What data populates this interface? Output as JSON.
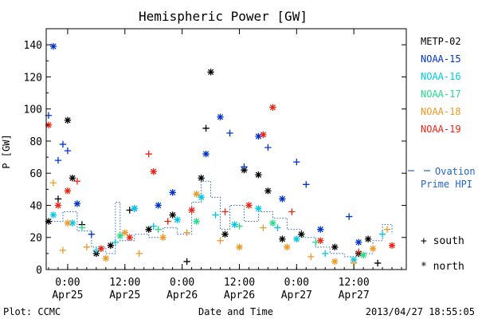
{
  "chart_data": {
    "type": "scatter",
    "title": "Hemispheric Power [GW]",
    "xlabel": "Date and Time",
    "ylabel": "P [GW]",
    "ylim": [
      0,
      150
    ],
    "xlim": [
      "2013-04-24T19:30",
      "2013-04-27T23:00"
    ],
    "yticks": [
      0,
      20,
      40,
      60,
      80,
      100,
      120,
      140
    ],
    "xticks": [
      {
        "x": "2013-04-25T00:00",
        "time": "0:00",
        "date": "Apr25"
      },
      {
        "x": "2013-04-25T12:00",
        "time": "12:00",
        "date": "Apr25"
      },
      {
        "x": "2013-04-26T00:00",
        "time": "0:00",
        "date": "Apr26"
      },
      {
        "x": "2013-04-26T12:00",
        "time": "12:00",
        "date": "Apr26"
      },
      {
        "x": "2013-04-27T00:00",
        "time": "0:00",
        "date": "Apr27"
      },
      {
        "x": "2013-04-27T12:00",
        "time": "12:00",
        "date": "Apr27"
      }
    ],
    "legend_placement": "right",
    "series": [
      {
        "name": "METP-02",
        "color": "#000000",
        "points": [
          {
            "x": "2013-04-24T20:00",
            "y": 30,
            "m": "north"
          },
          {
            "x": "2013-04-24T22:00",
            "y": 44,
            "m": "south"
          },
          {
            "x": "2013-04-25T00:00",
            "y": 93,
            "m": "north"
          },
          {
            "x": "2013-04-25T01:00",
            "y": 57,
            "m": "north"
          },
          {
            "x": "2013-04-25T03:00",
            "y": 28,
            "m": "south"
          },
          {
            "x": "2013-04-25T06:00",
            "y": 10,
            "m": "north"
          },
          {
            "x": "2013-04-25T09:00",
            "y": 15,
            "m": "north"
          },
          {
            "x": "2013-04-25T13:00",
            "y": 37,
            "m": "south"
          },
          {
            "x": "2013-04-25T17:00",
            "y": 25,
            "m": "north"
          },
          {
            "x": "2013-04-25T22:00",
            "y": 34,
            "m": "north"
          },
          {
            "x": "2013-04-26T01:00",
            "y": 5,
            "m": "south"
          },
          {
            "x": "2013-04-26T04:00",
            "y": 57,
            "m": "north"
          },
          {
            "x": "2013-04-26T05:00",
            "y": 88,
            "m": "south"
          },
          {
            "x": "2013-04-26T06:00",
            "y": 123,
            "m": "north"
          },
          {
            "x": "2013-04-26T09:00",
            "y": 22,
            "m": "north"
          },
          {
            "x": "2013-04-26T13:00",
            "y": 62,
            "m": "north"
          },
          {
            "x": "2013-04-26T16:00",
            "y": 59,
            "m": "north"
          },
          {
            "x": "2013-04-26T18:00",
            "y": 49,
            "m": "north"
          },
          {
            "x": "2013-04-26T21:00",
            "y": 19,
            "m": "north"
          },
          {
            "x": "2013-04-27T01:00",
            "y": 22,
            "m": "north"
          },
          {
            "x": "2013-04-27T08:00",
            "y": 14,
            "m": "north"
          },
          {
            "x": "2013-04-27T13:00",
            "y": 10,
            "m": "north"
          },
          {
            "x": "2013-04-27T15:00",
            "y": 19,
            "m": "north"
          },
          {
            "x": "2013-04-27T17:00",
            "y": 4,
            "m": "south"
          }
        ]
      },
      {
        "name": "NOAA-15",
        "color": "#0033cc",
        "points": [
          {
            "x": "2013-04-24T20:00",
            "y": 96,
            "m": "south"
          },
          {
            "x": "2013-04-24T21:00",
            "y": 139,
            "m": "north"
          },
          {
            "x": "2013-04-24T22:00",
            "y": 68,
            "m": "south"
          },
          {
            "x": "2013-04-24T23:00",
            "y": 78,
            "m": "south"
          },
          {
            "x": "2013-04-25T00:00",
            "y": 74,
            "m": "south"
          },
          {
            "x": "2013-04-25T02:00",
            "y": 41,
            "m": "north"
          },
          {
            "x": "2013-04-25T05:00",
            "y": 22,
            "m": "south"
          },
          {
            "x": "2013-04-25T14:00",
            "y": 38,
            "m": "north"
          },
          {
            "x": "2013-04-25T19:00",
            "y": 40,
            "m": "north"
          },
          {
            "x": "2013-04-25T22:00",
            "y": 48,
            "m": "north"
          },
          {
            "x": "2013-04-26T05:00",
            "y": 72,
            "m": "north"
          },
          {
            "x": "2013-04-26T08:00",
            "y": 95,
            "m": "north"
          },
          {
            "x": "2013-04-26T10:00",
            "y": 85,
            "m": "south"
          },
          {
            "x": "2013-04-26T13:00",
            "y": 64,
            "m": "south"
          },
          {
            "x": "2013-04-26T16:00",
            "y": 83,
            "m": "north"
          },
          {
            "x": "2013-04-26T18:00",
            "y": 76,
            "m": "south"
          },
          {
            "x": "2013-04-26T21:00",
            "y": 44,
            "m": "north"
          },
          {
            "x": "2013-04-27T00:00",
            "y": 67,
            "m": "south"
          },
          {
            "x": "2013-04-27T02:00",
            "y": 53,
            "m": "south"
          },
          {
            "x": "2013-04-27T05:00",
            "y": 25,
            "m": "north"
          },
          {
            "x": "2013-04-27T11:00",
            "y": 33,
            "m": "south"
          },
          {
            "x": "2013-04-27T13:00",
            "y": 17,
            "m": "north"
          }
        ]
      },
      {
        "name": "NOAA-16",
        "color": "#00c8e8",
        "points": [
          {
            "x": "2013-04-24T21:00",
            "y": 34,
            "m": "north"
          },
          {
            "x": "2013-04-25T01:00",
            "y": 29,
            "m": "north"
          },
          {
            "x": "2013-04-25T06:00",
            "y": 12,
            "m": "south"
          },
          {
            "x": "2013-04-25T10:00",
            "y": 17,
            "m": "south"
          },
          {
            "x": "2013-04-25T14:00",
            "y": 38,
            "m": "north"
          },
          {
            "x": "2013-04-25T18:00",
            "y": 27,
            "m": "south"
          },
          {
            "x": "2013-04-25T23:00",
            "y": 31,
            "m": "north"
          },
          {
            "x": "2013-04-26T04:00",
            "y": 45,
            "m": "north"
          },
          {
            "x": "2013-04-26T07:00",
            "y": 34,
            "m": "south"
          },
          {
            "x": "2013-04-26T11:00",
            "y": 28,
            "m": "north"
          },
          {
            "x": "2013-04-26T16:00",
            "y": 38,
            "m": "north"
          },
          {
            "x": "2013-04-26T20:00",
            "y": 26,
            "m": "south"
          },
          {
            "x": "2013-04-27T00:00",
            "y": 19,
            "m": "north"
          },
          {
            "x": "2013-04-27T06:00",
            "y": 10,
            "m": "south"
          },
          {
            "x": "2013-04-27T12:00",
            "y": 6,
            "m": "north"
          },
          {
            "x": "2013-04-27T18:00",
            "y": 22,
            "m": "south"
          }
        ]
      },
      {
        "name": "NOAA-17",
        "color": "#22dd88",
        "points": [
          {
            "x": "2013-04-25T03:00",
            "y": 26,
            "m": "south"
          },
          {
            "x": "2013-04-25T11:00",
            "y": 21,
            "m": "north"
          },
          {
            "x": "2013-04-25T19:00",
            "y": 25,
            "m": "south"
          },
          {
            "x": "2013-04-26T03:00",
            "y": 30,
            "m": "north"
          },
          {
            "x": "2013-04-26T12:00",
            "y": 27,
            "m": "south"
          },
          {
            "x": "2013-04-26T19:00",
            "y": 29,
            "m": "north"
          },
          {
            "x": "2013-04-27T04:00",
            "y": 17,
            "m": "south"
          },
          {
            "x": "2013-04-27T14:00",
            "y": 9,
            "m": "north"
          }
        ]
      },
      {
        "name": "NOAA-18",
        "color": "#ee9922",
        "points": [
          {
            "x": "2013-04-24T21:00",
            "y": 54,
            "m": "south"
          },
          {
            "x": "2013-04-24T23:00",
            "y": 12,
            "m": "south"
          },
          {
            "x": "2013-04-25T00:00",
            "y": 29,
            "m": "north"
          },
          {
            "x": "2013-04-25T04:00",
            "y": 14,
            "m": "south"
          },
          {
            "x": "2013-04-25T08:00",
            "y": 7,
            "m": "north"
          },
          {
            "x": "2013-04-25T12:00",
            "y": 23,
            "m": "north"
          },
          {
            "x": "2013-04-25T15:00",
            "y": 10,
            "m": "south"
          },
          {
            "x": "2013-04-25T20:00",
            "y": 20,
            "m": "north"
          },
          {
            "x": "2013-04-26T01:00",
            "y": 23,
            "m": "south"
          },
          {
            "x": "2013-04-26T03:00",
            "y": 47,
            "m": "north"
          },
          {
            "x": "2013-04-26T08:00",
            "y": 18,
            "m": "south"
          },
          {
            "x": "2013-04-26T12:00",
            "y": 14,
            "m": "north"
          },
          {
            "x": "2013-04-26T17:00",
            "y": 26,
            "m": "south"
          },
          {
            "x": "2013-04-26T22:00",
            "y": 14,
            "m": "north"
          },
          {
            "x": "2013-04-27T03:00",
            "y": 8,
            "m": "south"
          },
          {
            "x": "2013-04-27T08:00",
            "y": 5,
            "m": "north"
          },
          {
            "x": "2013-04-27T12:00",
            "y": 4,
            "m": "south"
          },
          {
            "x": "2013-04-27T16:00",
            "y": 13,
            "m": "north"
          },
          {
            "x": "2013-04-27T19:00",
            "y": 25,
            "m": "south"
          }
        ]
      },
      {
        "name": "NOAA-19",
        "color": "#ee2211",
        "points": [
          {
            "x": "2013-04-24T20:00",
            "y": 90,
            "m": "north"
          },
          {
            "x": "2013-04-24T22:00",
            "y": 40,
            "m": "north"
          },
          {
            "x": "2013-04-25T00:00",
            "y": 49,
            "m": "north"
          },
          {
            "x": "2013-04-25T02:00",
            "y": 55,
            "m": "south"
          },
          {
            "x": "2013-04-25T07:00",
            "y": 13,
            "m": "north"
          },
          {
            "x": "2013-04-25T13:00",
            "y": 20,
            "m": "north"
          },
          {
            "x": "2013-04-25T17:00",
            "y": 72,
            "m": "south"
          },
          {
            "x": "2013-04-25T18:00",
            "y": 61,
            "m": "north"
          },
          {
            "x": "2013-04-25T21:00",
            "y": 30,
            "m": "south"
          },
          {
            "x": "2013-04-26T02:00",
            "y": 37,
            "m": "north"
          },
          {
            "x": "2013-04-26T09:00",
            "y": 36,
            "m": "south"
          },
          {
            "x": "2013-04-26T14:00",
            "y": 40,
            "m": "north"
          },
          {
            "x": "2013-04-26T17:00",
            "y": 84,
            "m": "north"
          },
          {
            "x": "2013-04-26T19:00",
            "y": 101,
            "m": "north"
          },
          {
            "x": "2013-04-26T23:00",
            "y": 36,
            "m": "south"
          },
          {
            "x": "2013-04-27T05:00",
            "y": 18,
            "m": "north"
          },
          {
            "x": "2013-04-27T13:00",
            "y": 11,
            "m": "south"
          },
          {
            "x": "2013-04-27T20:00",
            "y": 15,
            "m": "north"
          }
        ]
      }
    ],
    "ovation_series": {
      "name": "Ovation Prime HPI",
      "color": "#2266cc",
      "points": [
        {
          "x": "2013-04-24T20:00",
          "y": 30
        },
        {
          "x": "2013-04-24T23:00",
          "y": 36
        },
        {
          "x": "2013-04-25T02:00",
          "y": 24
        },
        {
          "x": "2013-04-25T05:00",
          "y": 14
        },
        {
          "x": "2013-04-25T08:00",
          "y": 10
        },
        {
          "x": "2013-04-25T10:00",
          "y": 42
        },
        {
          "x": "2013-04-25T11:00",
          "y": 18
        },
        {
          "x": "2013-04-25T14:00",
          "y": 22
        },
        {
          "x": "2013-04-25T17:00",
          "y": 20
        },
        {
          "x": "2013-04-25T20:00",
          "y": 26
        },
        {
          "x": "2013-04-25T23:00",
          "y": 22
        },
        {
          "x": "2013-04-26T02:00",
          "y": 42
        },
        {
          "x": "2013-04-26T04:00",
          "y": 55
        },
        {
          "x": "2013-04-26T06:00",
          "y": 45
        },
        {
          "x": "2013-04-26T08:00",
          "y": 25
        },
        {
          "x": "2013-04-26T10:00",
          "y": 40
        },
        {
          "x": "2013-04-26T13:00",
          "y": 30
        },
        {
          "x": "2013-04-26T16:00",
          "y": 36
        },
        {
          "x": "2013-04-26T19:00",
          "y": 32
        },
        {
          "x": "2013-04-26T22:00",
          "y": 25
        },
        {
          "x": "2013-04-27T01:00",
          "y": 20
        },
        {
          "x": "2013-04-27T04:00",
          "y": 14
        },
        {
          "x": "2013-04-27T07:00",
          "y": 10
        },
        {
          "x": "2013-04-27T10:00",
          "y": 8
        },
        {
          "x": "2013-04-27T13:00",
          "y": 10
        },
        {
          "x": "2013-04-27T16:00",
          "y": 18
        },
        {
          "x": "2013-04-27T18:00",
          "y": 28
        },
        {
          "x": "2013-04-27T20:00",
          "y": 22
        }
      ]
    },
    "marker_legend": [
      {
        "symbol": "+",
        "label": "south"
      },
      {
        "symbol": "*",
        "label": "north"
      }
    ]
  },
  "footer": {
    "plot_credit": "Plot: CCMC",
    "timestamp": "2013/04/27 18:55:05"
  }
}
